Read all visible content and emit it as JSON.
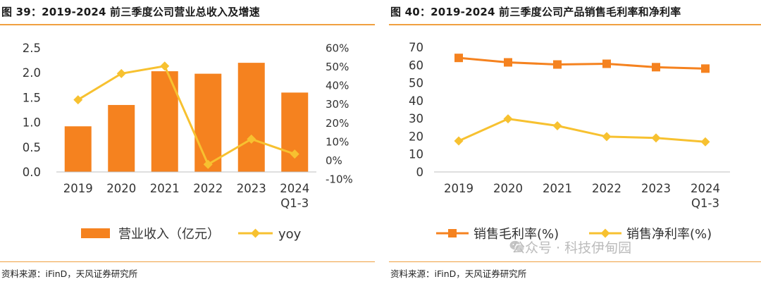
{
  "left": {
    "title": "图 39：2019-2024 前三季度公司营业总收入及增速",
    "source": "资料来源：iFinD，天风证券研究所"
  },
  "right": {
    "title": "图 40：2019-2024 前三季度公司产品销售毛利率和净利率",
    "source": "资料来源：iFinD，天风证券研究所"
  },
  "watermark": "公众号 · 科技伊甸园",
  "colors": {
    "bar": "#f5821f",
    "yoy": "#f7c130",
    "gross": "#f5821f",
    "net": "#f7c130",
    "rule": "#f0a040"
  },
  "chart_data": [
    {
      "type": "bar",
      "categories": [
        "2019",
        "2020",
        "2021",
        "2022",
        "2023",
        "2024\nQ1-3"
      ],
      "series": [
        {
          "name": "营业收入（亿元）",
          "type": "bar",
          "axis": "left",
          "values": [
            0.92,
            1.35,
            2.03,
            1.98,
            2.2,
            1.6
          ]
        },
        {
          "name": "yoy",
          "type": "line",
          "axis": "right",
          "values": [
            32.5,
            46.5,
            50.5,
            -2.0,
            11.5,
            3.5
          ]
        }
      ],
      "ylim": [
        0,
        2.5
      ],
      "yticks": [
        "0.0",
        "0.5",
        "1.0",
        "1.5",
        "2.0",
        "2.5"
      ],
      "y2lim": [
        -10,
        60
      ],
      "y2ticks": [
        "-10%",
        "0%",
        "10%",
        "20%",
        "30%",
        "40%",
        "50%",
        "60%"
      ],
      "legend": "bottom",
      "grid": false
    },
    {
      "type": "line",
      "categories": [
        "2019",
        "2020",
        "2021",
        "2022",
        "2023",
        "2024\nQ1-3"
      ],
      "series": [
        {
          "name": "销售毛利率(%)",
          "marker": "square",
          "values": [
            64.0,
            61.5,
            60.3,
            60.7,
            58.8,
            58.0
          ]
        },
        {
          "name": "销售净利率(%)",
          "marker": "diamond",
          "values": [
            17.4,
            29.8,
            25.9,
            19.8,
            19.1,
            16.9
          ]
        }
      ],
      "ylim": [
        0,
        70
      ],
      "yticks": [
        "0",
        "10",
        "20",
        "30",
        "40",
        "50",
        "60",
        "70"
      ],
      "legend": "bottom",
      "grid": false
    }
  ]
}
